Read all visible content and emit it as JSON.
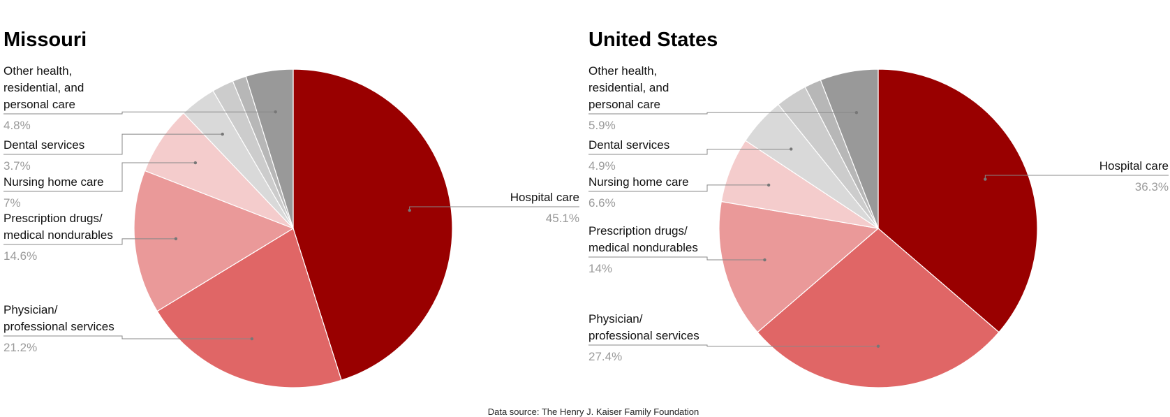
{
  "source_note": "Data source: The Henry J. Kaiser Family Foundation",
  "chart_data": [
    {
      "type": "pie",
      "title": "Missouri",
      "slices": [
        {
          "label": "Hospital care",
          "value": 45.1,
          "pct_text": "45.1%",
          "color": "#990000"
        },
        {
          "label": "Physician/ professional services",
          "value": 21.2,
          "pct_text": "21.2%",
          "color": "#e06666"
        },
        {
          "label": "Prescription drugs/ medical nondurables",
          "value": 14.6,
          "pct_text": "14.6%",
          "color": "#ea9999"
        },
        {
          "label": "Nursing home care",
          "value": 7.0,
          "pct_text": "7%",
          "color": "#f4cccc"
        },
        {
          "label": "Dental services",
          "value": 3.7,
          "pct_text": "3.7%",
          "color": "#d9d9d9"
        },
        {
          "label": "",
          "value": 2.2,
          "pct_text": "",
          "color": "#cccccc"
        },
        {
          "label": "",
          "value": 1.4,
          "pct_text": "",
          "color": "#b7b7b7"
        },
        {
          "label": "Other health, residential, and personal care",
          "value": 4.8,
          "pct_text": "4.8%",
          "color": "#999999"
        }
      ]
    },
    {
      "type": "pie",
      "title": "United States",
      "slices": [
        {
          "label": "Hospital care",
          "value": 36.3,
          "pct_text": "36.3%",
          "color": "#990000"
        },
        {
          "label": "Physician/ professional services",
          "value": 27.4,
          "pct_text": "27.4%",
          "color": "#e06666"
        },
        {
          "label": "Prescription drugs/ medical nondurables",
          "value": 14.0,
          "pct_text": "14%",
          "color": "#ea9999"
        },
        {
          "label": "Nursing home care",
          "value": 6.6,
          "pct_text": "6.6%",
          "color": "#f4cccc"
        },
        {
          "label": "Dental services",
          "value": 4.9,
          "pct_text": "4.9%",
          "color": "#d9d9d9"
        },
        {
          "label": "",
          "value": 3.2,
          "pct_text": "",
          "color": "#cccccc"
        },
        {
          "label": "",
          "value": 1.7,
          "pct_text": "",
          "color": "#b7b7b7"
        },
        {
          "label": "Other health, residential, and personal care",
          "value": 5.9,
          "pct_text": "5.9%",
          "color": "#999999"
        }
      ]
    }
  ]
}
